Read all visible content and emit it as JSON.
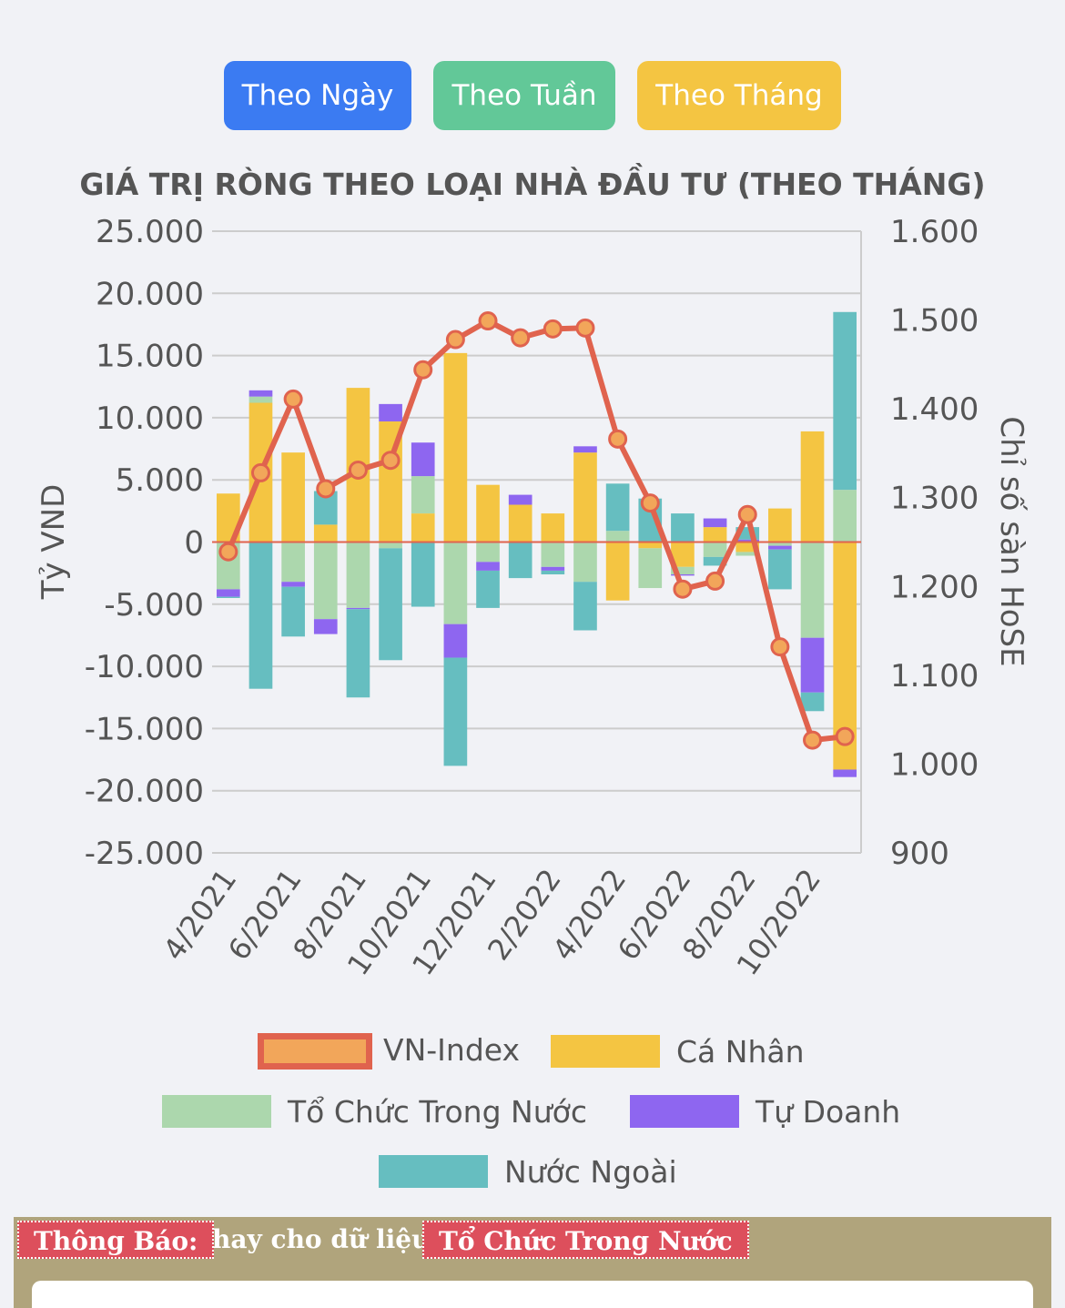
{
  "buttons": {
    "day": "Theo Ngày",
    "week": "Theo Tuần",
    "month": "Theo Tháng"
  },
  "colors": {
    "day_button": "#3b7bf2",
    "week_button": "#62c898",
    "month_button": "#f4c542",
    "vn_index_line": "#e0634e",
    "vn_index_marker": "#f2a65a",
    "ca_nhan": "#f4c542",
    "to_chuc_trong_nuoc": "#acd7ad",
    "tu_doanh": "#8e66f0",
    "nuoc_ngoai": "#66bec0",
    "zero_line": "#e0634e",
    "grid": "#cccccc"
  },
  "chart_data": {
    "type": "bar",
    "stacked": true,
    "title": "GIÁ TRỊ RÒNG THEO LOẠI NHÀ ĐẦU TƯ (THEO THÁNG)",
    "ylabel": "Tỷ VND",
    "y2label": "Chỉ số sàn HoSE",
    "ylim": [
      -25000,
      25000
    ],
    "y2lim": [
      900,
      1600
    ],
    "yticks": [
      "25.000",
      "20.000",
      "15.000",
      "10.000",
      "5.000",
      "0",
      "-5.000",
      "-10.000",
      "-15.000",
      "-20.000",
      "-25.000"
    ],
    "y2ticks": [
      "1.600",
      "1.500",
      "1.400",
      "1.300",
      "1.200",
      "1.100",
      "1.000",
      "900"
    ],
    "categories": [
      "4/2021",
      "5/2021",
      "6/2021",
      "7/2021",
      "8/2021",
      "9/2021",
      "10/2021",
      "11/2021",
      "12/2021",
      "1/2022",
      "2/2022",
      "3/2022",
      "4/2022",
      "5/2022",
      "6/2022",
      "7/2022",
      "8/2022",
      "9/2022",
      "10/2022",
      "11/2022"
    ],
    "x_tick_labels": [
      "4/2021",
      "6/2021",
      "8/2021",
      "10/2021",
      "12/2021",
      "2/2022",
      "4/2022",
      "6/2022",
      "8/2022",
      "10/2022"
    ],
    "grid": true,
    "legend_position": "bottom",
    "series": [
      {
        "name": "VN-Index",
        "type": "line",
        "axis": "right",
        "values": [
          1239,
          1328,
          1411,
          1310,
          1331,
          1342,
          1444,
          1478,
          1499,
          1480,
          1490,
          1491,
          1366,
          1294,
          1197,
          1206,
          1281,
          1132,
          1027,
          1031
        ]
      },
      {
        "name": "Cá Nhân",
        "type": "bar",
        "values": [
          3900,
          11200,
          7200,
          1400,
          12400,
          9700,
          2300,
          15200,
          4600,
          3000,
          2300,
          7200,
          -4700,
          -500,
          -2000,
          1200,
          -800,
          2700,
          8900,
          -18300
        ]
      },
      {
        "name": "Tổ Chức Trong Nước",
        "type": "bar",
        "values": [
          -3800,
          500,
          -3200,
          -6200,
          -5300,
          -500,
          3000,
          -6600,
          -1600,
          0,
          -2000,
          -3200,
          900,
          -3200,
          -600,
          -1200,
          -300,
          -300,
          -7700,
          4200
        ]
      },
      {
        "name": "Tự Doanh",
        "type": "bar",
        "values": [
          -600,
          500,
          -400,
          -1200,
          -100,
          1400,
          2700,
          -2700,
          -700,
          800,
          -300,
          500,
          0,
          0,
          -100,
          700,
          200,
          -300,
          -4400,
          -600
        ]
      },
      {
        "name": "Nước Ngoài",
        "type": "bar",
        "values": [
          -100,
          -11800,
          -4000,
          2700,
          -7100,
          -9000,
          -5200,
          -8700,
          -3000,
          -2900,
          -300,
          -3900,
          3800,
          3500,
          2300,
          -700,
          1000,
          -3200,
          -1500,
          14300
        ]
      }
    ]
  },
  "notice": {
    "label": "Thông Báo:",
    "text": "hay cho dữ liệu",
    "highlight": "Tổ Chức Trong Nước"
  }
}
